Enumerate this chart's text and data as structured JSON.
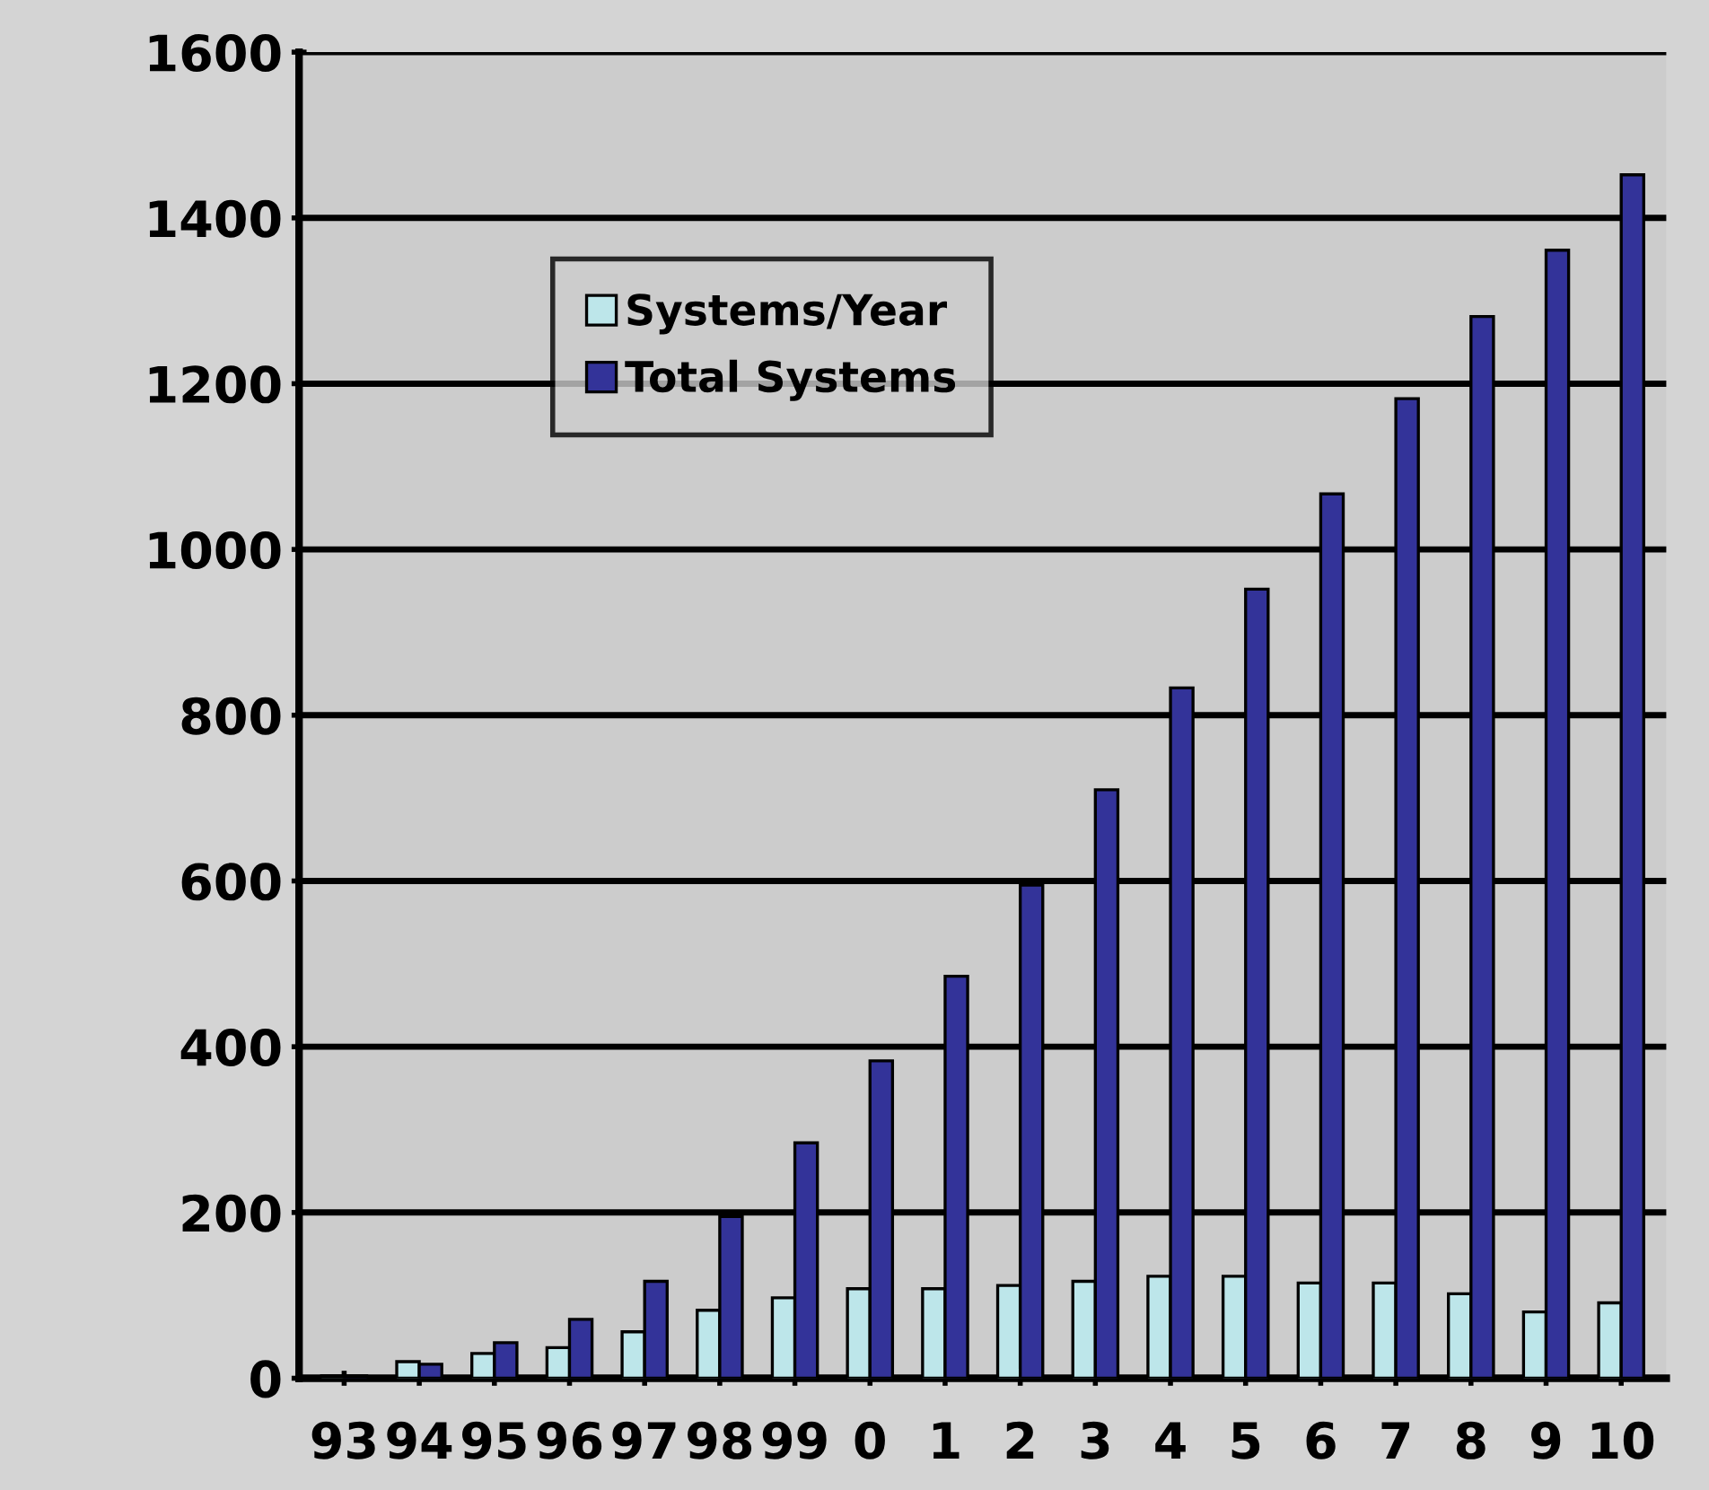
{
  "chart_data": {
    "type": "bar",
    "categories": [
      "93",
      "94",
      "95",
      "96",
      "97",
      "98",
      "99",
      "0",
      "1",
      "2",
      "3",
      "4",
      "5",
      "6",
      "7",
      "8",
      "9",
      "10"
    ],
    "series": [
      {
        "name": "Systems/Year",
        "color": "#bde6ea",
        "values": [
          3,
          20,
          30,
          37,
          56,
          82,
          97,
          108,
          108,
          112,
          117,
          123,
          123,
          115,
          115,
          102,
          80,
          91
        ]
      },
      {
        "name": "Total Systems",
        "color": "#333399",
        "values": [
          3,
          17,
          43,
          71,
          117,
          195,
          284,
          383,
          485,
          595,
          710,
          833,
          952,
          1067,
          1182,
          1281,
          1361,
          1452
        ]
      }
    ],
    "ylim": [
      0,
      1600
    ],
    "yticks": [
      0,
      200,
      400,
      600,
      800,
      1000,
      1200,
      1400,
      1600
    ],
    "grid": "y",
    "legend": "top left"
  }
}
